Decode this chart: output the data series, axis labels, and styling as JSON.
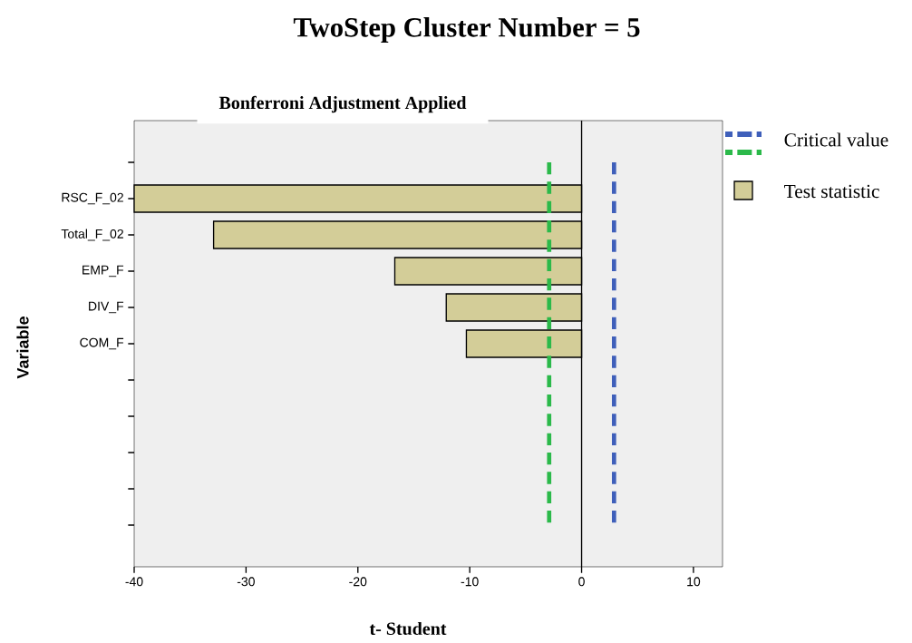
{
  "chart_data": {
    "type": "bar",
    "orientation": "horizontal",
    "title": "TwoStep Cluster Number = 5",
    "subtitle": "Bonferroni Adjustment Applied",
    "xlabel": "t- Student",
    "ylabel": "Variable",
    "categories": [
      null,
      "RSC_F_02",
      "Total_F_02",
      "EMP_F",
      "DIV_F",
      "COM_F",
      null,
      null,
      null,
      null,
      null
    ],
    "series": [
      {
        "name": "Test statistic",
        "color": "#d3cd98",
        "values": [
          null,
          -40,
          -32.9,
          -16.7,
          -12.1,
          -10.3,
          null,
          null,
          null,
          null,
          null
        ]
      }
    ],
    "xlim": [
      -40,
      12.6
    ],
    "xticks": [
      -40,
      -30,
      -20,
      -10,
      0,
      10
    ],
    "ref_lines": [
      {
        "axis": "x",
        "value": 2.9,
        "label": "Critical value",
        "color": "#3f5fba",
        "line_style": "dashed"
      },
      {
        "axis": "x",
        "value": -2.9,
        "color": "#2bb94a",
        "line_style": "dashed"
      }
    ],
    "legend": "top right"
  }
}
